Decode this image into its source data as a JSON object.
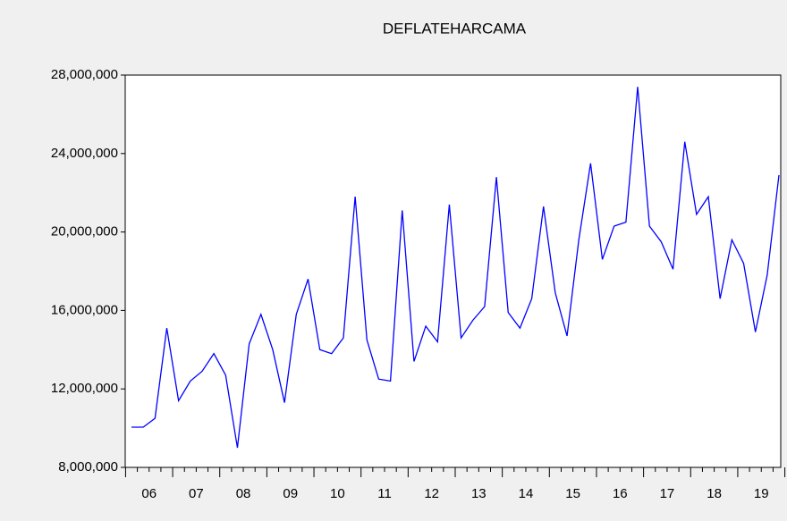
{
  "chart_data": {
    "type": "line",
    "title": "DEFLATEHARCAMA",
    "categories": [
      "06",
      null,
      null,
      null,
      "07",
      null,
      null,
      null,
      "08",
      null,
      null,
      null,
      "09",
      null,
      null,
      null,
      "10",
      null,
      null,
      null,
      "11",
      null,
      null,
      null,
      "12",
      null,
      null,
      null,
      "13",
      null,
      null,
      null,
      "14",
      null,
      null,
      null,
      "15",
      null,
      null,
      null,
      "16",
      null,
      null,
      null,
      "17",
      null,
      null,
      null,
      "18",
      null,
      null,
      null,
      "19",
      null,
      null,
      null
    ],
    "series": [
      {
        "name": "DEFLATEHARCAMA",
        "color": "#0000ff",
        "values": [
          10050000,
          10050000,
          10500000,
          15100000,
          11400000,
          12400000,
          12900000,
          13800000,
          12700000,
          9000000,
          14300000,
          15800000,
          14000000,
          11300000,
          15800000,
          17600000,
          14000000,
          13800000,
          14600000,
          21800000,
          14500000,
          12500000,
          12400000,
          21100000,
          13400000,
          15200000,
          14400000,
          21400000,
          14600000,
          15500000,
          16200000,
          22800000,
          15900000,
          15100000,
          16600000,
          21300000,
          16900000,
          14700000,
          19600000,
          23500000,
          18600000,
          20300000,
          20500000,
          27400000,
          20300000,
          19500000,
          18100000,
          24600000,
          20900000,
          21800000,
          16600000,
          19600000,
          18400000,
          14900000,
          17800000,
          22900000
        ]
      }
    ],
    "ylim": [
      8000000,
      28000000
    ],
    "yticks": [
      {
        "value": 8000000,
        "label": "8,000,000"
      },
      {
        "value": 12000000,
        "label": "12,000,000"
      },
      {
        "value": 16000000,
        "label": "16,000,000"
      },
      {
        "value": 20000000,
        "label": "20,000,000"
      },
      {
        "value": 24000000,
        "label": "24,000,000"
      },
      {
        "value": 28000000,
        "label": "28,000,000"
      }
    ],
    "grid": false
  }
}
